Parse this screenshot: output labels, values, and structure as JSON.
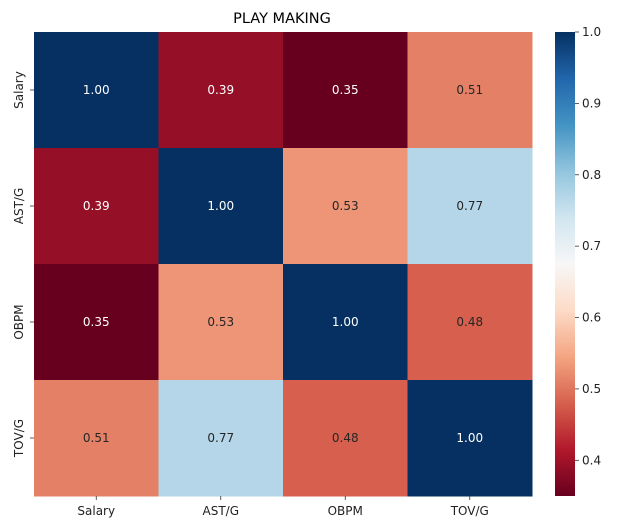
{
  "chart_data": {
    "type": "heatmap",
    "title": "PLAY MAKING",
    "xlabel": "",
    "ylabel": "",
    "x_categories": [
      "Salary",
      "AST/G",
      "OBPM",
      "TOV/G"
    ],
    "y_categories": [
      "Salary",
      "AST/G",
      "OBPM",
      "TOV/G"
    ],
    "values": [
      [
        1.0,
        0.39,
        0.35,
        0.51
      ],
      [
        0.39,
        1.0,
        0.53,
        0.77
      ],
      [
        0.35,
        0.53,
        1.0,
        0.48
      ],
      [
        0.51,
        0.77,
        0.48,
        1.0
      ]
    ],
    "value_labels": [
      [
        "1.00",
        "0.39",
        "0.35",
        "0.51"
      ],
      [
        "0.39",
        "1.00",
        "0.53",
        "0.77"
      ],
      [
        "0.35",
        "0.53",
        "1.00",
        "0.48"
      ],
      [
        "0.51",
        "0.77",
        "0.48",
        "1.00"
      ]
    ],
    "colormap": "RdBu",
    "vmin": 0.35,
    "vmax": 1.0,
    "colorbar_ticks": [
      0.4,
      0.5,
      0.6,
      0.7,
      0.8,
      0.9,
      1.0
    ],
    "colorbar_tick_labels": [
      "0.4",
      "0.5",
      "0.6",
      "0.7",
      "0.8",
      "0.9",
      "1.0"
    ],
    "grid": false,
    "colorbar_position": "right"
  }
}
